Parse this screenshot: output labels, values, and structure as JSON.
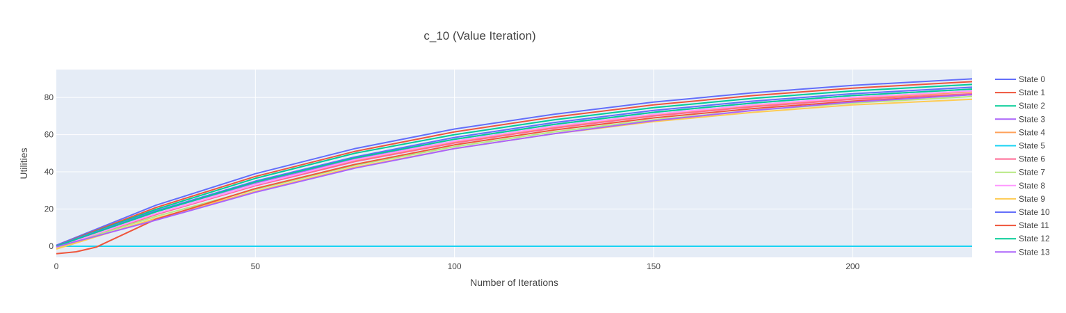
{
  "chart_data": {
    "type": "line",
    "title": "c_10 (Value Iteration)",
    "xlabel": "Number of Iterations",
    "ylabel": "Utilities",
    "xlim": [
      0,
      230
    ],
    "ylim": [
      -6,
      95
    ],
    "xticks": [
      0,
      50,
      100,
      150,
      200
    ],
    "yticks": [
      0,
      20,
      40,
      60,
      80
    ],
    "grid": true,
    "legend_placement": "right",
    "plot_background": "#e5ecf6",
    "gridline_color": "#ffffff",
    "series": [
      {
        "name": "State 0",
        "color": "#636efa",
        "x": [
          0,
          25,
          50,
          75,
          100,
          125,
          150,
          175,
          200,
          230
        ],
        "y": [
          0.5,
          22,
          39,
          52.5,
          63,
          71,
          77.5,
          82.5,
          86.5,
          90
        ]
      },
      {
        "name": "State 1",
        "color": "#ef553b",
        "x": [
          0,
          25,
          50,
          75,
          100,
          125,
          150,
          175,
          200,
          230
        ],
        "y": [
          0.3,
          20.8,
          37.5,
          51,
          61.5,
          69.5,
          76,
          81,
          85,
          88.5
        ]
      },
      {
        "name": "State 2",
        "color": "#00cc96",
        "x": [
          0,
          25,
          50,
          75,
          100,
          125,
          150,
          175,
          200,
          230
        ],
        "y": [
          0.2,
          19.8,
          36.5,
          50,
          60,
          68,
          74.5,
          79.5,
          83.5,
          87
        ]
      },
      {
        "name": "State 3",
        "color": "#ab63fa",
        "x": [
          0,
          25,
          50,
          75,
          100,
          125,
          150,
          175,
          200,
          230
        ],
        "y": [
          0.0,
          18.5,
          34,
          47,
          57.5,
          65.5,
          72,
          77,
          81,
          84.5
        ]
      },
      {
        "name": "State 4",
        "color": "#ffa15a",
        "x": [
          0,
          25,
          50,
          75,
          100,
          125,
          150,
          175,
          200,
          230
        ],
        "y": [
          -0.5,
          17.5,
          33,
          46,
          56,
          64,
          70.5,
          75.5,
          79.5,
          83
        ]
      },
      {
        "name": "State 5",
        "color": "#19d3f3",
        "x": [
          0,
          25,
          50,
          75,
          100,
          125,
          150,
          175,
          200,
          230
        ],
        "y": [
          0,
          0,
          0,
          0,
          0,
          0,
          0,
          0,
          0,
          0
        ]
      },
      {
        "name": "State 6",
        "color": "#ff6692",
        "x": [
          0,
          25,
          50,
          75,
          100,
          125,
          150,
          175,
          200,
          230
        ],
        "y": [
          -1.0,
          17,
          32.5,
          45.5,
          55.5,
          63.5,
          70,
          75,
          79,
          82
        ]
      },
      {
        "name": "State 7",
        "color": "#b6e880",
        "x": [
          0,
          25,
          50,
          75,
          100,
          125,
          150,
          175,
          200,
          230
        ],
        "y": [
          -0.8,
          16,
          30.5,
          43.5,
          53.5,
          61.5,
          68,
          73,
          77,
          80.5
        ]
      },
      {
        "name": "State 8",
        "color": "#ff97ff",
        "x": [
          0,
          25,
          50,
          75,
          100,
          125,
          150,
          175,
          200,
          230
        ],
        "y": [
          -0.5,
          17.5,
          33,
          46.5,
          56.5,
          64.5,
          71,
          76,
          80,
          83.5
        ]
      },
      {
        "name": "State 9",
        "color": "#fecb52",
        "x": [
          0,
          25,
          50,
          75,
          100,
          125,
          150,
          175,
          200,
          230
        ],
        "y": [
          -1.5,
          15,
          29.5,
          42.5,
          52.5,
          60.5,
          67,
          72,
          76,
          79
        ]
      },
      {
        "name": "State 10",
        "color": "#636efa",
        "x": [
          0,
          25,
          50,
          75,
          100,
          125,
          150,
          175,
          200,
          230
        ],
        "y": [
          0.3,
          19,
          35,
          48,
          58.5,
          66.5,
          73,
          78,
          82,
          85.5
        ]
      },
      {
        "name": "State 11",
        "color": "#ef553b",
        "x": [
          0,
          5,
          10,
          25,
          50,
          75,
          100,
          125,
          150,
          175,
          200,
          230
        ],
        "y": [
          -4,
          -3,
          -0.5,
          14.5,
          31,
          44,
          54.5,
          62.5,
          69,
          74,
          78,
          81.5
        ]
      },
      {
        "name": "State 12",
        "color": "#00cc96",
        "x": [
          0,
          25,
          50,
          75,
          100,
          125,
          150,
          175,
          200,
          230
        ],
        "y": [
          0.0,
          18.5,
          34.5,
          47.5,
          57.5,
          65.5,
          72,
          77,
          81,
          84.5
        ]
      },
      {
        "name": "State 13",
        "color": "#ab63fa",
        "x": [
          0,
          25,
          50,
          75,
          100,
          125,
          150,
          175,
          200,
          230
        ],
        "y": [
          -0.3,
          14,
          29,
          42,
          52.5,
          60.5,
          67.5,
          73,
          77.5,
          81.5
        ]
      }
    ]
  }
}
